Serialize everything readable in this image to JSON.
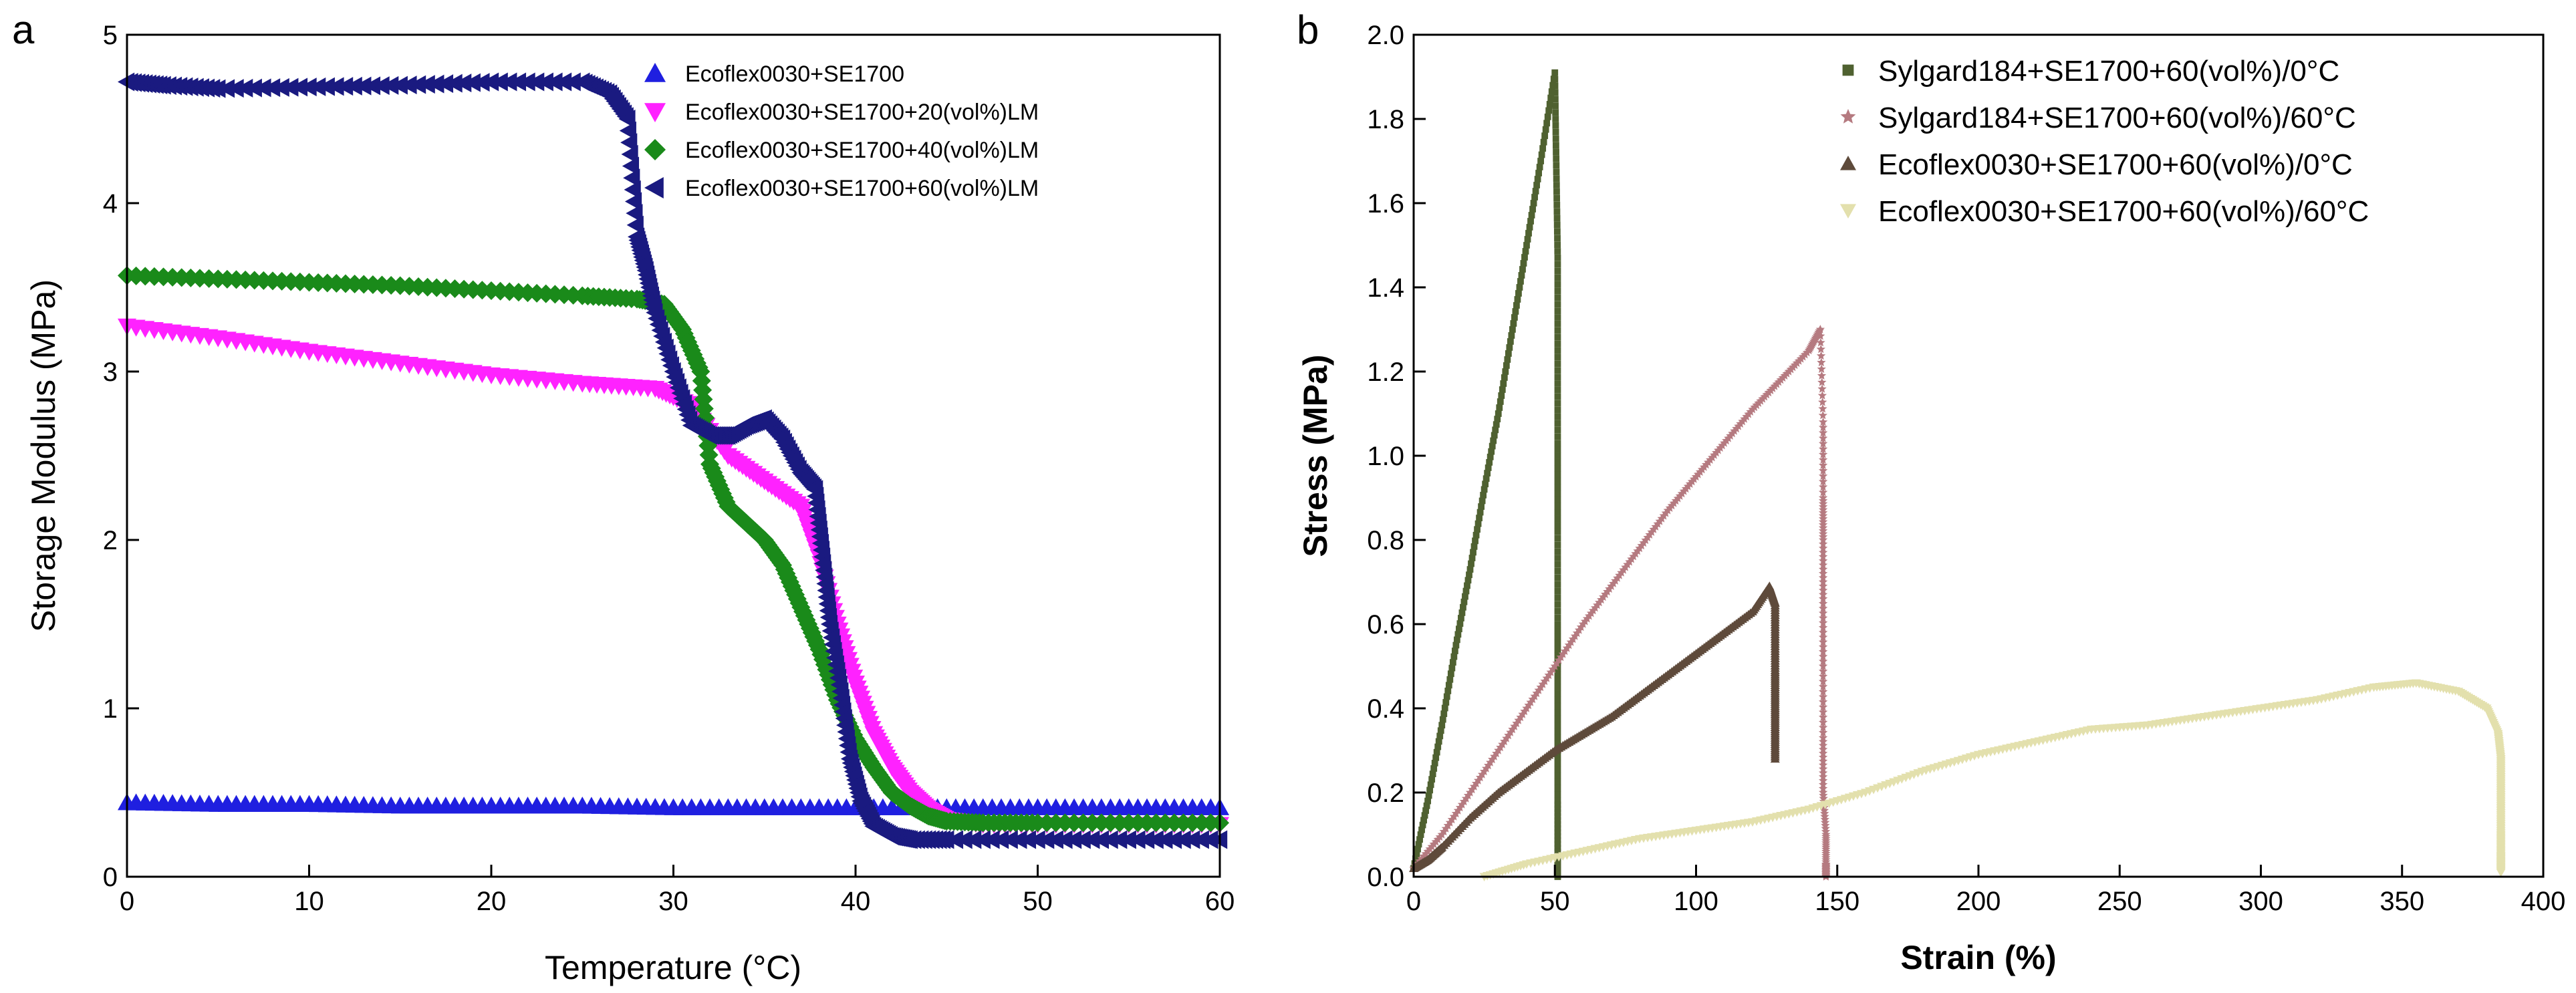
{
  "chart_data": [
    {
      "panel": "a",
      "type": "scatter",
      "xlabel": "Temperature (°C)",
      "ylabel": "Storage Modulus (MPa)",
      "xlim": [
        0,
        60
      ],
      "ylim": [
        0,
        5
      ],
      "xticks": [
        0,
        10,
        20,
        30,
        40,
        50,
        60
      ],
      "yticks": [
        0,
        1,
        2,
        3,
        4,
        5
      ],
      "grid": false,
      "legend_position": "top-right",
      "series": [
        {
          "name": "Ecoflex0030+SE1700",
          "color": "#1f1fe0",
          "marker": "triangle-up",
          "x": [
            0,
            5,
            10,
            15,
            20,
            25,
            30,
            35,
            40,
            45,
            50,
            55,
            60
          ],
          "y": [
            0.44,
            0.43,
            0.43,
            0.42,
            0.42,
            0.42,
            0.41,
            0.41,
            0.41,
            0.41,
            0.41,
            0.41,
            0.41
          ]
        },
        {
          "name": "Ecoflex0030+SE1700+20(vol%)LM",
          "color": "#ff22ff",
          "marker": "triangle-down",
          "x": [
            0,
            5,
            10,
            15,
            20,
            25,
            29,
            31,
            33,
            35,
            37,
            38,
            39,
            40,
            41,
            42,
            43,
            44,
            45,
            47,
            50,
            55,
            60
          ],
          "y": [
            3.27,
            3.2,
            3.12,
            3.05,
            2.98,
            2.93,
            2.9,
            2.8,
            2.5,
            2.35,
            2.2,
            1.9,
            1.5,
            1.15,
            0.85,
            0.65,
            0.5,
            0.4,
            0.34,
            0.31,
            0.31,
            0.31,
            0.31
          ]
        },
        {
          "name": "Ecoflex0030+SE1700+40(vol%)LM",
          "color": "#1a8a1a",
          "marker": "diamond",
          "x": [
            0,
            5,
            10,
            15,
            20,
            25,
            28,
            29.5,
            30.5,
            31.5,
            32,
            33,
            34,
            35,
            36,
            37,
            38,
            39,
            40,
            41,
            42,
            43,
            44,
            45,
            47,
            50,
            55,
            60
          ],
          "y": [
            3.57,
            3.55,
            3.53,
            3.51,
            3.48,
            3.45,
            3.43,
            3.4,
            3.25,
            3.0,
            2.45,
            2.2,
            2.1,
            2.0,
            1.85,
            1.6,
            1.35,
            1.05,
            0.82,
            0.65,
            0.5,
            0.42,
            0.36,
            0.33,
            0.32,
            0.32,
            0.32,
            0.32
          ]
        },
        {
          "name": "Ecoflex0030+SE1700+60(vol%)LM",
          "color": "#1a1a80",
          "marker": "triangle-left",
          "x": [
            0,
            2,
            5,
            10,
            15,
            20,
            25,
            26.5,
            27.5,
            28,
            28.5,
            29,
            30,
            31,
            32,
            33,
            34,
            35,
            36,
            37,
            37.8,
            38.2,
            38.6,
            39.2,
            39.7,
            40.3,
            41,
            42,
            43,
            45,
            50,
            55,
            60
          ],
          "y": [
            4.72,
            4.7,
            4.68,
            4.69,
            4.7,
            4.72,
            4.72,
            4.65,
            4.5,
            3.8,
            3.6,
            3.35,
            3.0,
            2.68,
            2.62,
            2.62,
            2.68,
            2.72,
            2.6,
            2.4,
            2.3,
            1.9,
            1.5,
            1.1,
            0.7,
            0.45,
            0.3,
            0.24,
            0.22,
            0.22,
            0.22,
            0.22,
            0.22
          ]
        }
      ]
    },
    {
      "panel": "b",
      "type": "scatter",
      "xlabel": "Strain (%)",
      "ylabel": "Stress (MPa)",
      "xlim": [
        0,
        400
      ],
      "ylim": [
        0,
        2.0
      ],
      "xticks": [
        0,
        50,
        100,
        150,
        200,
        250,
        300,
        350,
        400
      ],
      "yticks": [
        0.0,
        0.2,
        0.4,
        0.6,
        0.8,
        1.0,
        1.2,
        1.4,
        1.6,
        1.8,
        2.0
      ],
      "ytick_labels": [
        "0.0",
        "0.2",
        "0.4",
        "0.6",
        "0.8",
        "1.0",
        "1.2",
        "1.4",
        "1.6",
        "1.8",
        "2.0"
      ],
      "grid": false,
      "legend_position": "top-right",
      "series": [
        {
          "name": "Sylgard184+SE1700+60(vol%)/0°C",
          "color": "#4f6130",
          "marker": "square",
          "x": [
            0,
            5,
            10,
            15,
            20,
            25,
            30,
            35,
            40,
            45,
            50,
            50.5,
            51,
            51,
            51,
            51,
            51,
            51,
            51,
            51,
            51
          ],
          "y": [
            0.02,
            0.18,
            0.36,
            0.55,
            0.73,
            0.92,
            1.1,
            1.3,
            1.5,
            1.7,
            1.91,
            1.69,
            1.47,
            1.25,
            1.03,
            0.82,
            0.6,
            0.39,
            0.18,
            0.05,
            0.0
          ]
        },
        {
          "name": "Sylgard184+SE1700+60(vol%)/60°C",
          "color": "#b57a80",
          "marker": "star",
          "x": [
            0,
            10,
            20,
            30,
            40,
            50,
            60,
            70,
            80,
            90,
            100,
            110,
            120,
            130,
            140,
            144,
            145,
            145,
            145,
            145,
            145,
            145,
            145,
            146,
            146,
            146
          ],
          "y": [
            0.02,
            0.1,
            0.2,
            0.3,
            0.4,
            0.5,
            0.6,
            0.69,
            0.78,
            0.87,
            0.95,
            1.03,
            1.11,
            1.18,
            1.25,
            1.3,
            1.08,
            0.9,
            0.8,
            0.66,
            0.5,
            0.33,
            0.2,
            0.1,
            0.03,
            0.0
          ]
        },
        {
          "name": "Ecoflex0030+SE1700+60(vol%)/0°C",
          "color": "#5e4a3b",
          "marker": "triangle-up",
          "x": [
            0,
            5,
            10,
            20,
            30,
            40,
            50,
            60,
            70,
            80,
            90,
            100,
            110,
            120,
            126,
            128,
            128,
            128,
            128,
            128,
            128
          ],
          "y": [
            0.02,
            0.04,
            0.07,
            0.14,
            0.2,
            0.25,
            0.3,
            0.34,
            0.38,
            0.43,
            0.48,
            0.53,
            0.58,
            0.63,
            0.69,
            0.65,
            0.57,
            0.49,
            0.42,
            0.35,
            0.28
          ]
        },
        {
          "name": "Ecoflex0030+SE1700+60(vol%)/60°C",
          "color": "#e3e0ad",
          "marker": "triangle-down",
          "x": [
            25,
            40,
            60,
            80,
            100,
            120,
            140,
            160,
            180,
            200,
            220,
            240,
            260,
            280,
            300,
            320,
            340,
            355,
            370,
            380,
            384,
            385,
            385,
            385,
            385,
            385,
            385
          ],
          "y": [
            0.0,
            0.03,
            0.06,
            0.09,
            0.11,
            0.13,
            0.16,
            0.2,
            0.25,
            0.29,
            0.32,
            0.35,
            0.36,
            0.38,
            0.4,
            0.42,
            0.45,
            0.46,
            0.44,
            0.4,
            0.34,
            0.28,
            0.22,
            0.16,
            0.1,
            0.05,
            0.01
          ]
        }
      ]
    }
  ]
}
